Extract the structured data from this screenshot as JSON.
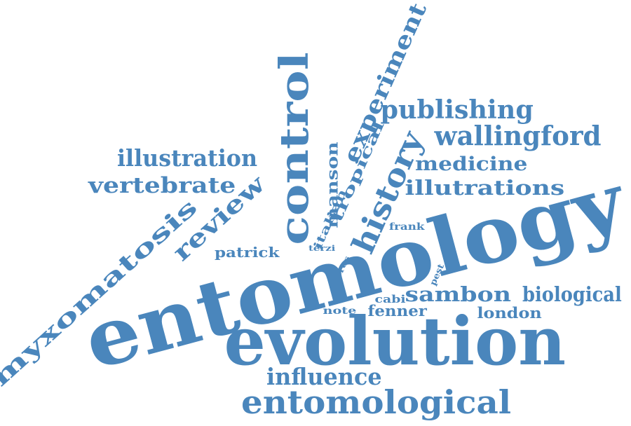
{
  "color": "#4a86bc",
  "words": [
    {
      "text": "entomology",
      "orientation": "diagonal"
    },
    {
      "text": "evolution",
      "orientation": "horizontal"
    },
    {
      "text": "entomological",
      "orientation": "horizontal"
    },
    {
      "text": "influence",
      "orientation": "horizontal"
    },
    {
      "text": "control",
      "orientation": "vertical"
    },
    {
      "text": "history",
      "orientation": "diagonal"
    },
    {
      "text": "experiment",
      "orientation": "diagonal"
    },
    {
      "text": "publishing",
      "orientation": "horizontal"
    },
    {
      "text": "wallingford",
      "orientation": "horizontal"
    },
    {
      "text": "medicine",
      "orientation": "horizontal"
    },
    {
      "text": "illutrations",
      "orientation": "horizontal"
    },
    {
      "text": "illustration",
      "orientation": "horizontal"
    },
    {
      "text": "vertebrate",
      "orientation": "horizontal"
    },
    {
      "text": "review",
      "orientation": "diagonal"
    },
    {
      "text": "myxomatosis",
      "orientation": "diagonal"
    },
    {
      "text": "manson",
      "orientation": "vertical"
    },
    {
      "text": "tropical",
      "orientation": "diagonal"
    },
    {
      "text": "italian",
      "orientation": "diagonal"
    },
    {
      "text": "patrick",
      "orientation": "horizontal"
    },
    {
      "text": "terzi",
      "orientation": "horizontal"
    },
    {
      "text": "frank",
      "orientation": "horizontal"
    },
    {
      "text": "ros",
      "orientation": "diagonal"
    },
    {
      "text": "pest",
      "orientation": "diagonal"
    },
    {
      "text": "sambon",
      "orientation": "horizontal"
    },
    {
      "text": "biological",
      "orientation": "horizontal"
    },
    {
      "text": "cabi",
      "orientation": "horizontal"
    },
    {
      "text": "note",
      "orientation": "horizontal"
    },
    {
      "text": "fenner",
      "orientation": "horizontal"
    },
    {
      "text": "london",
      "orientation": "horizontal"
    }
  ]
}
